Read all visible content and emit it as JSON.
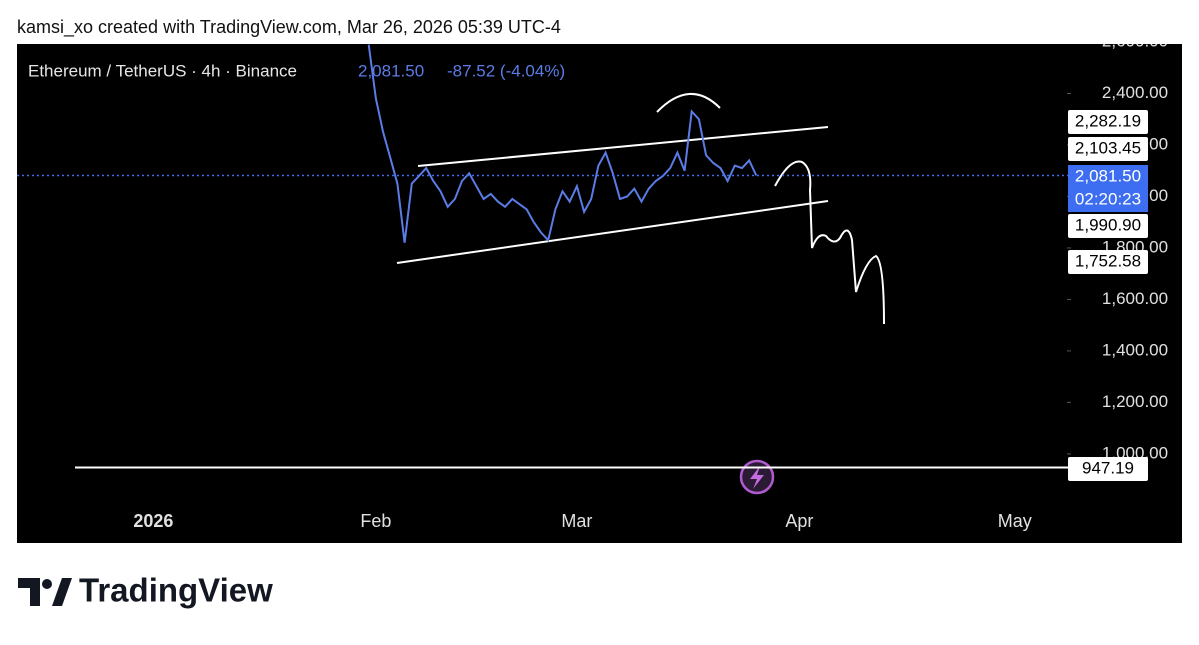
{
  "chart_data": {
    "type": "line",
    "caption": "kamsi_xo created with TradingView.com, Mar 26, 2026 05:39 UTC-4",
    "symbol": "Ethereum / TetherUS · 4h · Binance",
    "last_price_text": "2,081.50",
    "change_text": "-87.52 (-4.04%)",
    "brand": "TradingView",
    "series": [
      {
        "name": "ETHUSDT",
        "color": "#5b7ce6",
        "x": [
          "2026-01-31",
          "2026-02-01",
          "2026-02-02",
          "2026-02-03",
          "2026-02-04",
          "2026-02-05",
          "2026-02-06",
          "2026-02-07",
          "2026-02-08",
          "2026-02-09",
          "2026-02-10",
          "2026-02-11",
          "2026-02-12",
          "2026-02-13",
          "2026-02-14",
          "2026-02-15",
          "2026-02-16",
          "2026-02-17",
          "2026-02-18",
          "2026-02-19",
          "2026-02-20",
          "2026-02-21",
          "2026-02-22",
          "2026-02-23",
          "2026-02-24",
          "2026-02-25",
          "2026-02-26",
          "2026-02-27",
          "2026-02-28",
          "2026-03-01",
          "2026-03-02",
          "2026-03-03",
          "2026-03-04",
          "2026-03-05",
          "2026-03-06",
          "2026-03-07",
          "2026-03-08",
          "2026-03-09",
          "2026-03-10",
          "2026-03-11",
          "2026-03-12",
          "2026-03-13",
          "2026-03-14",
          "2026-03-15",
          "2026-03-16",
          "2026-03-17",
          "2026-03-18",
          "2026-03-19",
          "2026-03-20",
          "2026-03-21",
          "2026-03-22",
          "2026-03-23",
          "2026-03-24",
          "2026-03-25",
          "2026-03-26"
        ],
        "values": [
          2590,
          2380,
          2250,
          2150,
          2050,
          1820,
          2050,
          2080,
          2110,
          2060,
          2020,
          1960,
          1990,
          2060,
          2090,
          2040,
          1990,
          2010,
          1980,
          1960,
          1990,
          1970,
          1950,
          1900,
          1860,
          1830,
          1950,
          2020,
          1980,
          2040,
          1940,
          1990,
          2120,
          2170,
          2090,
          1990,
          2000,
          2030,
          1980,
          2030,
          2060,
          2080,
          2110,
          2170,
          2100,
          2330,
          2300,
          2160,
          2130,
          2110,
          2060,
          2120,
          2110,
          2140,
          2081.5
        ]
      }
    ],
    "xlim": [
      "2025-12-13",
      "2026-05-08"
    ],
    "xticks": [
      {
        "value": "2026-01-01",
        "label": "2026"
      },
      {
        "value": "2026-02-01",
        "label": "Feb"
      },
      {
        "value": "2026-03-01",
        "label": "Mar"
      },
      {
        "value": "2026-04-01",
        "label": "Apr"
      },
      {
        "value": "2026-05-01",
        "label": "May"
      }
    ],
    "ylim": [
      650,
      2600
    ],
    "yticks": [
      {
        "value": 2600,
        "label": "2,600.00"
      },
      {
        "value": 2400,
        "label": "2,400.00"
      },
      {
        "value": 2200,
        "label": "2,200.00"
      },
      {
        "value": 2000,
        "label": "2,000.00"
      },
      {
        "value": 1800,
        "label": "1,800.00"
      },
      {
        "value": 1600,
        "label": "1,600.00"
      },
      {
        "value": 1400,
        "label": "1,400.00"
      },
      {
        "value": 1200,
        "label": "1,200.00"
      },
      {
        "value": 1000,
        "label": "1,000.00"
      }
    ],
    "last_price": {
      "value": 2081.5,
      "label": "2,081.50",
      "countdown": "02:20:23"
    },
    "price_labels": [
      {
        "value": 2282.19,
        "label": "2,282.19"
      },
      {
        "value": 2103.45,
        "label": "2,103.45"
      },
      {
        "value": 1990.9,
        "label": "1,990.90"
      },
      {
        "value": 1752.58,
        "label": "1,752.58"
      },
      {
        "value": 947.19,
        "label": "947.19"
      }
    ]
  }
}
